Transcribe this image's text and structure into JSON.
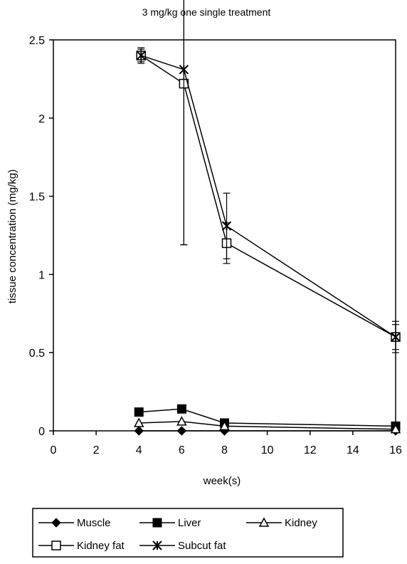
{
  "chart_data": {
    "type": "line",
    "title": "3 mg/kg one single treatment",
    "xlabel": "week(s)",
    "ylabel": "tissue concentration (mg/kg)",
    "xlim": [
      0,
      16
    ],
    "ylim": [
      0,
      2.5
    ],
    "x_ticks": [
      "0",
      "2",
      "4",
      "6",
      "8",
      "10",
      "12",
      "14",
      "16"
    ],
    "y_ticks": [
      "0",
      "0.5",
      "1",
      "1.5",
      "2",
      "2.5"
    ],
    "grid": false,
    "legend_position": "bottom",
    "series": [
      {
        "name": "Muscle",
        "marker": "diamond",
        "x": [
          4,
          6,
          8,
          16
        ],
        "y": [
          0.0,
          0.0,
          0.0,
          0.0
        ]
      },
      {
        "name": "Liver",
        "marker": "filled-square",
        "x": [
          4,
          6,
          8,
          16
        ],
        "y": [
          0.12,
          0.14,
          0.05,
          0.03
        ]
      },
      {
        "name": "Kidney",
        "marker": "open-triangle",
        "x": [
          4,
          6,
          8,
          16
        ],
        "y": [
          0.05,
          0.06,
          0.03,
          0.01
        ]
      },
      {
        "name": "Kidney fat",
        "marker": "open-square",
        "x": [
          4.1,
          6.1,
          8.1,
          16
        ],
        "y": [
          2.4,
          2.22,
          1.2,
          0.6
        ],
        "error": [
          0.04,
          1.03,
          0.13,
          0.08
        ]
      },
      {
        "name": "Subcut fat",
        "marker": "asterisk",
        "x": [
          4.1,
          6.1,
          8.1,
          16
        ],
        "y": [
          2.4,
          2.31,
          1.31,
          0.6
        ],
        "error": [
          0.05,
          1.12,
          0.21,
          0.1
        ]
      }
    ]
  }
}
